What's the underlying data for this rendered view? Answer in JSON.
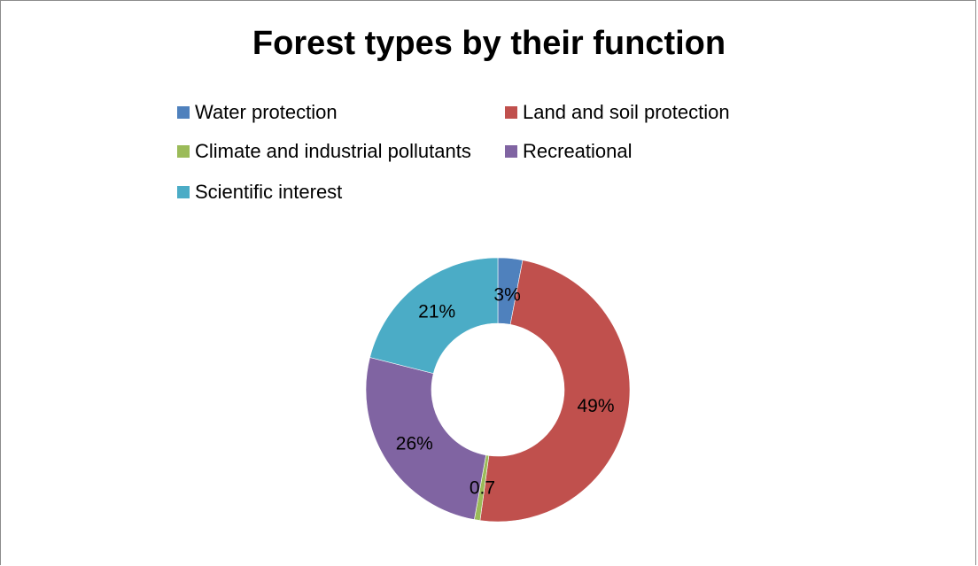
{
  "chart_data": {
    "type": "pie",
    "variant": "doughnut",
    "title": "Forest types by their function",
    "legend_position": "top",
    "series": [
      {
        "name": "Water protection",
        "value": 3,
        "label": "3%",
        "color": "#4f81bd"
      },
      {
        "name": "Land and soil protection",
        "value": 49,
        "label": "49%",
        "color": "#c0504d"
      },
      {
        "name": "Climate and industrial pollutants",
        "value": 0.7,
        "label": "0.7",
        "color": "#9bbb59"
      },
      {
        "name": "Recreational",
        "value": 26,
        "label": "26%",
        "color": "#8064a2"
      },
      {
        "name": "Scientific interest",
        "value": 21,
        "label": "21%",
        "color": "#4bacc6"
      }
    ]
  }
}
